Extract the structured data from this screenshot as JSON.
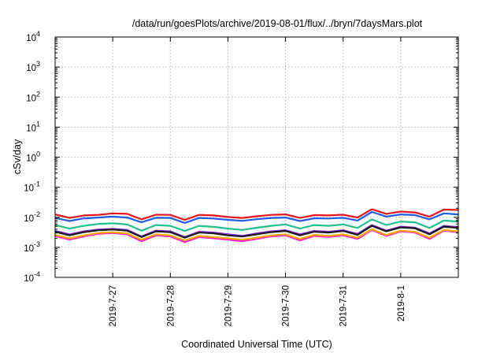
{
  "chart_data": {
    "type": "line",
    "title": "/data/run/goesPlots/archive/2019-08-01/flux/../bryn/7daysMars.plot",
    "xlabel": "Coordinated Universal Time (UTC)",
    "ylabel": "cSv/day",
    "y_scale": "log",
    "ylim": [
      0.0001,
      10000
    ],
    "y_ticks": [
      {
        "base": "10",
        "exp": "-4",
        "value": 0.0001
      },
      {
        "base": "10",
        "exp": "-3",
        "value": 0.001
      },
      {
        "base": "10",
        "exp": "-2",
        "value": 0.01
      },
      {
        "base": "10",
        "exp": "-1",
        "value": 0.1
      },
      {
        "base": "10",
        "exp": "0",
        "value": 1
      },
      {
        "base": "10",
        "exp": "1",
        "value": 10
      },
      {
        "base": "10",
        "exp": "2",
        "value": 100
      },
      {
        "base": "10",
        "exp": "3",
        "value": 1000
      },
      {
        "base": "10",
        "exp": "4",
        "value": 10000
      }
    ],
    "xlim": [
      "2019-07-26T00:00",
      "2019-08-02T00:00"
    ],
    "x_ticks": [
      "2019-7-27",
      "2019-7-28",
      "2019-7-29",
      "2019-7-30",
      "2019-7-31",
      "2019-8-1"
    ],
    "grid": true,
    "series": [
      {
        "color": "#e8141c",
        "x": [
          "2019-07-26T00:00",
          "2019-07-26T06:00",
          "2019-07-26T12:00",
          "2019-07-26T18:00",
          "2019-07-27T00:00",
          "2019-07-27T06:00",
          "2019-07-27T12:00",
          "2019-07-27T18:00",
          "2019-07-28T00:00",
          "2019-07-28T06:00",
          "2019-07-28T12:00",
          "2019-07-28T18:00",
          "2019-07-29T00:00",
          "2019-07-29T06:00",
          "2019-07-29T12:00",
          "2019-07-29T18:00",
          "2019-07-30T00:00",
          "2019-07-30T06:00",
          "2019-07-30T12:00",
          "2019-07-30T18:00",
          "2019-07-31T00:00",
          "2019-07-31T06:00",
          "2019-07-31T12:00",
          "2019-07-31T18:00",
          "2019-08-01T00:00",
          "2019-08-01T06:00",
          "2019-08-01T12:00",
          "2019-08-01T18:00",
          "2019-08-02T00:00"
        ],
        "values": [
          0.0125,
          0.0095,
          0.0115,
          0.012,
          0.0135,
          0.013,
          0.0085,
          0.0122,
          0.012,
          0.0082,
          0.012,
          0.0115,
          0.0102,
          0.0095,
          0.0108,
          0.012,
          0.0125,
          0.0095,
          0.0118,
          0.0115,
          0.0122,
          0.0098,
          0.0185,
          0.013,
          0.0155,
          0.0145,
          0.0105,
          0.018,
          0.0175
        ]
      },
      {
        "color": "#1f5ce8",
        "x": [
          "2019-07-26T00:00",
          "2019-07-26T06:00",
          "2019-07-26T12:00",
          "2019-07-26T18:00",
          "2019-07-27T00:00",
          "2019-07-27T06:00",
          "2019-07-27T12:00",
          "2019-07-27T18:00",
          "2019-07-28T00:00",
          "2019-07-28T06:00",
          "2019-07-28T12:00",
          "2019-07-28T18:00",
          "2019-07-29T00:00",
          "2019-07-29T06:00",
          "2019-07-29T12:00",
          "2019-07-29T18:00",
          "2019-07-30T00:00",
          "2019-07-30T06:00",
          "2019-07-30T12:00",
          "2019-07-30T18:00",
          "2019-07-31T00:00",
          "2019-07-31T06:00",
          "2019-07-31T12:00",
          "2019-07-31T18:00",
          "2019-08-01T00:00",
          "2019-08-01T06:00",
          "2019-08-01T12:00",
          "2019-08-01T18:00",
          "2019-08-02T00:00"
        ],
        "values": [
          0.0095,
          0.0075,
          0.0092,
          0.0098,
          0.0105,
          0.0098,
          0.0068,
          0.0096,
          0.0095,
          0.0065,
          0.0095,
          0.0091,
          0.0082,
          0.0076,
          0.0086,
          0.0095,
          0.0098,
          0.0075,
          0.0093,
          0.0091,
          0.0096,
          0.0078,
          0.015,
          0.0105,
          0.0125,
          0.0118,
          0.0085,
          0.0135,
          0.0125
        ]
      },
      {
        "color": "#1fbf8f",
        "x": [
          "2019-07-26T00:00",
          "2019-07-26T06:00",
          "2019-07-26T12:00",
          "2019-07-26T18:00",
          "2019-07-27T00:00",
          "2019-07-27T06:00",
          "2019-07-27T12:00",
          "2019-07-27T18:00",
          "2019-07-28T00:00",
          "2019-07-28T06:00",
          "2019-07-28T12:00",
          "2019-07-28T18:00",
          "2019-07-29T00:00",
          "2019-07-29T06:00",
          "2019-07-29T12:00",
          "2019-07-29T18:00",
          "2019-07-30T00:00",
          "2019-07-30T06:00",
          "2019-07-30T12:00",
          "2019-07-30T18:00",
          "2019-07-31T00:00",
          "2019-07-31T06:00",
          "2019-07-31T12:00",
          "2019-07-31T18:00",
          "2019-08-01T00:00",
          "2019-08-01T06:00",
          "2019-08-01T12:00",
          "2019-08-01T18:00",
          "2019-08-02T00:00"
        ],
        "values": [
          0.0055,
          0.0042,
          0.0052,
          0.006,
          0.0063,
          0.0058,
          0.0036,
          0.0055,
          0.0052,
          0.0035,
          0.0052,
          0.0048,
          0.0042,
          0.0038,
          0.0045,
          0.0052,
          0.0058,
          0.0042,
          0.0055,
          0.0052,
          0.0058,
          0.0044,
          0.0085,
          0.0055,
          0.0072,
          0.0068,
          0.0044,
          0.0078,
          0.0072
        ]
      },
      {
        "color": "#8a2be2",
        "x": [
          "2019-07-26T00:00",
          "2019-07-26T06:00",
          "2019-07-26T12:00",
          "2019-07-26T18:00",
          "2019-07-27T00:00",
          "2019-07-27T06:00",
          "2019-07-27T12:00",
          "2019-07-27T18:00",
          "2019-07-28T00:00",
          "2019-07-28T06:00",
          "2019-07-28T12:00",
          "2019-07-28T18:00",
          "2019-07-29T00:00",
          "2019-07-29T06:00",
          "2019-07-29T12:00",
          "2019-07-29T18:00",
          "2019-07-30T00:00",
          "2019-07-30T06:00",
          "2019-07-30T12:00",
          "2019-07-30T18:00",
          "2019-07-31T00:00",
          "2019-07-31T06:00",
          "2019-07-31T12:00",
          "2019-07-31T18:00",
          "2019-08-01T00:00",
          "2019-08-01T06:00",
          "2019-08-01T12:00",
          "2019-08-01T18:00",
          "2019-08-02T00:00"
        ],
        "values": [
          0.0035,
          0.0027,
          0.0034,
          0.0039,
          0.0041,
          0.0038,
          0.0023,
          0.0036,
          0.0034,
          0.0022,
          0.0033,
          0.0031,
          0.0027,
          0.0024,
          0.0029,
          0.0034,
          0.0037,
          0.0027,
          0.0035,
          0.0033,
          0.0037,
          0.0028,
          0.0055,
          0.0036,
          0.0049,
          0.0045,
          0.0029,
          0.0052,
          0.0047
        ]
      },
      {
        "color": "#1a1a1a",
        "x": [
          "2019-07-26T00:00",
          "2019-07-26T06:00",
          "2019-07-26T12:00",
          "2019-07-26T18:00",
          "2019-07-27T00:00",
          "2019-07-27T06:00",
          "2019-07-27T12:00",
          "2019-07-27T18:00",
          "2019-07-28T00:00",
          "2019-07-28T06:00",
          "2019-07-28T12:00",
          "2019-07-28T18:00",
          "2019-07-29T00:00",
          "2019-07-29T06:00",
          "2019-07-29T12:00",
          "2019-07-29T18:00",
          "2019-07-30T00:00",
          "2019-07-30T06:00",
          "2019-07-30T12:00",
          "2019-07-30T18:00",
          "2019-07-31T00:00",
          "2019-07-31T06:00",
          "2019-07-31T12:00",
          "2019-07-31T18:00",
          "2019-08-01T00:00",
          "2019-08-01T06:00",
          "2019-08-01T12:00",
          "2019-08-01T18:00",
          "2019-08-02T00:00"
        ],
        "values": [
          0.0033,
          0.0025,
          0.0032,
          0.0037,
          0.0039,
          0.0036,
          0.0022,
          0.0034,
          0.0032,
          0.0021,
          0.0031,
          0.0029,
          0.0025,
          0.0023,
          0.0027,
          0.0032,
          0.0035,
          0.0025,
          0.0033,
          0.0031,
          0.0035,
          0.0026,
          0.0052,
          0.0034,
          0.0046,
          0.0043,
          0.0027,
          0.0049,
          0.0044
        ]
      },
      {
        "color": "#ff1fc8",
        "x": [
          "2019-07-26T00:00",
          "2019-07-26T06:00",
          "2019-07-26T12:00",
          "2019-07-26T18:00",
          "2019-07-27T00:00",
          "2019-07-27T06:00",
          "2019-07-27T12:00",
          "2019-07-27T18:00",
          "2019-07-28T00:00",
          "2019-07-28T06:00",
          "2019-07-28T12:00",
          "2019-07-28T18:00",
          "2019-07-29T00:00",
          "2019-07-29T06:00",
          "2019-07-29T12:00",
          "2019-07-29T18:00",
          "2019-07-30T00:00",
          "2019-07-30T06:00",
          "2019-07-30T12:00",
          "2019-07-30T18:00",
          "2019-07-31T00:00",
          "2019-07-31T06:00",
          "2019-07-31T12:00",
          "2019-07-31T18:00",
          "2019-08-01T00:00",
          "2019-08-01T06:00",
          "2019-08-01T12:00",
          "2019-08-01T18:00",
          "2019-08-02T00:00"
        ],
        "values": [
          0.0024,
          0.0018,
          0.0023,
          0.0028,
          0.003,
          0.0027,
          0.0016,
          0.0025,
          0.0023,
          0.0015,
          0.0022,
          0.002,
          0.0018,
          0.0016,
          0.0019,
          0.0023,
          0.0025,
          0.0017,
          0.0024,
          0.0022,
          0.0025,
          0.0019,
          0.0038,
          0.0024,
          0.0034,
          0.0031,
          0.0019,
          0.0036,
          0.0032
        ]
      },
      {
        "color": "#f2a900",
        "x": [
          "2019-07-26T00:00",
          "2019-07-26T06:00",
          "2019-07-26T12:00",
          "2019-07-26T18:00",
          "2019-07-27T00:00",
          "2019-07-27T06:00",
          "2019-07-27T12:00",
          "2019-07-27T18:00",
          "2019-07-28T00:00",
          "2019-07-28T06:00",
          "2019-07-28T12:00",
          "2019-07-28T18:00",
          "2019-07-29T00:00",
          "2019-07-29T06:00",
          "2019-07-29T12:00",
          "2019-07-29T18:00",
          "2019-07-30T00:00",
          "2019-07-30T06:00",
          "2019-07-30T12:00",
          "2019-07-30T18:00",
          "2019-07-31T00:00",
          "2019-07-31T06:00",
          "2019-07-31T12:00",
          "2019-07-31T18:00",
          "2019-08-01T00:00",
          "2019-08-01T06:00",
          "2019-08-01T12:00",
          "2019-08-01T18:00",
          "2019-08-02T00:00"
        ],
        "values": [
          0.0026,
          0.002,
          0.0025,
          0.003,
          0.0032,
          0.0029,
          0.0018,
          0.0027,
          0.0025,
          0.0017,
          0.0024,
          0.0022,
          0.002,
          0.0018,
          0.0021,
          0.0025,
          0.0027,
          0.0019,
          0.0026,
          0.0024,
          0.0027,
          0.0021,
          0.004,
          0.0026,
          0.0036,
          0.0033,
          0.0021,
          0.0038,
          0.0034
        ]
      }
    ]
  }
}
